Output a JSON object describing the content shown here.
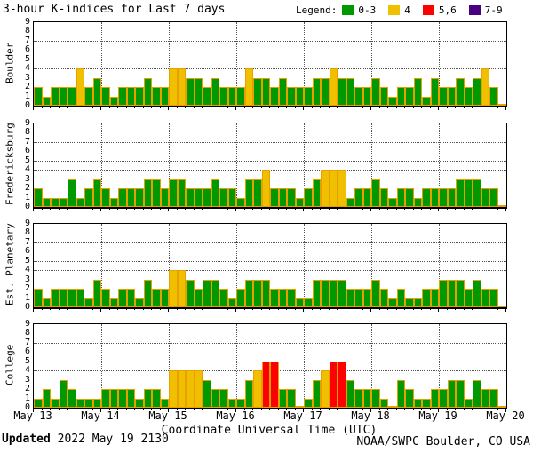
{
  "legend": {
    "label": "Legend:",
    "items": [
      {
        "label": "0-3",
        "color": "#009900"
      },
      {
        "label": "4",
        "color": "#F0C000"
      },
      {
        "label": "5,6",
        "color": "#FF0000"
      },
      {
        "label": "7-9",
        "color": "#4B0082"
      }
    ]
  },
  "colors": {
    "bar_outline": "#E8A000",
    "grid": "#555555",
    "axis": "#000000",
    "background": "#FFFFFF"
  },
  "footer": {
    "updated_label": "Updated",
    "updated_value": "2022 May 19 2130",
    "credit": "NOAA/SWPC Boulder, CO USA"
  },
  "chart_data": {
    "type": "bar",
    "title": "3-hour K-indices for Last 7 days",
    "xlabel": "Coordinate Universal Time (UTC)",
    "ylim": [
      0,
      9
    ],
    "yticks": [
      0,
      1,
      2,
      3,
      4,
      5,
      6,
      7,
      8,
      9
    ],
    "grid_y": [
      4,
      5,
      7
    ],
    "day_labels": [
      "May 13",
      "May 14",
      "May 15",
      "May 16",
      "May 17",
      "May 18",
      "May 19",
      "May 20"
    ],
    "bars_per_day": 8,
    "interval_hours": 3,
    "color_rule": "K 0-3 green, K 4 yellow, K 5-6 red, K 7-9 purple",
    "panels": [
      {
        "station": "Boulder",
        "values": [
          2,
          1,
          2,
          2,
          2,
          4,
          2,
          3,
          2,
          1,
          2,
          2,
          2,
          3,
          2,
          2,
          4,
          4,
          3,
          3,
          2,
          3,
          2,
          2,
          2,
          4,
          3,
          3,
          2,
          3,
          2,
          2,
          2,
          3,
          3,
          4,
          3,
          3,
          2,
          2,
          3,
          2,
          1,
          2,
          2,
          3,
          1,
          3,
          2,
          2,
          3,
          2,
          3,
          4,
          2,
          0
        ]
      },
      {
        "station": "Fredericksburg",
        "values": [
          2,
          1,
          1,
          1,
          3,
          1,
          2,
          3,
          2,
          1,
          2,
          2,
          2,
          3,
          3,
          2,
          3,
          3,
          2,
          2,
          2,
          3,
          2,
          2,
          1,
          3,
          3,
          4,
          2,
          2,
          2,
          1,
          2,
          3,
          4,
          4,
          4,
          1,
          2,
          2,
          3,
          2,
          1,
          2,
          2,
          1,
          2,
          2,
          2,
          2,
          3,
          3,
          3,
          2,
          2,
          0
        ]
      },
      {
        "station": "Est. Planetary",
        "values": [
          2,
          1,
          2,
          2,
          2,
          2,
          1,
          3,
          2,
          1,
          2,
          2,
          1,
          3,
          2,
          2,
          4,
          4,
          3,
          2,
          3,
          3,
          2,
          1,
          2,
          3,
          3,
          3,
          2,
          2,
          2,
          1,
          1,
          3,
          3,
          3,
          3,
          2,
          2,
          2,
          3,
          2,
          1,
          2,
          1,
          1,
          2,
          2,
          3,
          3,
          3,
          2,
          3,
          2,
          2,
          0
        ]
      },
      {
        "station": "College",
        "values": [
          1,
          2,
          1,
          3,
          2,
          1,
          1,
          1,
          2,
          2,
          2,
          2,
          1,
          2,
          2,
          1,
          4,
          4,
          4,
          4,
          3,
          2,
          2,
          1,
          1,
          3,
          4,
          5,
          5,
          2,
          2,
          0,
          1,
          3,
          4,
          5,
          5,
          3,
          2,
          2,
          2,
          1,
          0,
          3,
          2,
          1,
          1,
          2,
          2,
          3,
          3,
          1,
          3,
          2,
          2,
          0
        ]
      }
    ]
  }
}
